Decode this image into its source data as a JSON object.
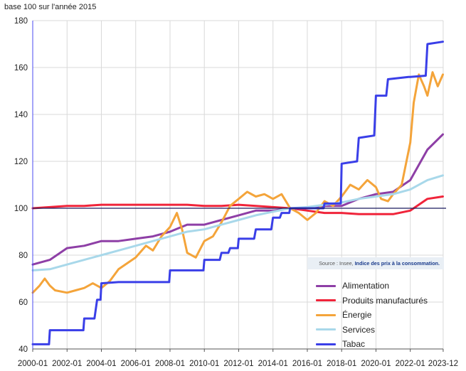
{
  "chart_data": {
    "type": "line",
    "title": "",
    "ylabel": "base 100 sur l'année 2015",
    "xlabel": "",
    "ylim": [
      40,
      180
    ],
    "yticks": [
      40,
      60,
      80,
      100,
      120,
      140,
      160,
      180
    ],
    "xticks": [
      "2000-01",
      "2002-01",
      "2004-01",
      "2006-01",
      "2008-01",
      "2010-01",
      "2012-01",
      "2014-01",
      "2016-01",
      "2018-01",
      "2020-01",
      "2022-01",
      "2023-12"
    ],
    "grid": true,
    "reference_line": 100,
    "legend_position": "bottom-right",
    "source_prefix": "Source : Insee,",
    "source_link": "Indice des prix à la consommation.",
    "series": [
      {
        "name": "Alimentation",
        "color": "#8e3fa6",
        "points": [
          [
            2000.0,
            76
          ],
          [
            2001.0,
            78
          ],
          [
            2002.0,
            83
          ],
          [
            2003.0,
            84
          ],
          [
            2004.0,
            86
          ],
          [
            2005.0,
            86
          ],
          [
            2006.0,
            87
          ],
          [
            2007.0,
            88
          ],
          [
            2008.0,
            90
          ],
          [
            2009.0,
            93
          ],
          [
            2010.0,
            93
          ],
          [
            2011.0,
            95
          ],
          [
            2012.0,
            97
          ],
          [
            2013.0,
            99
          ],
          [
            2014.0,
            99
          ],
          [
            2015.0,
            100
          ],
          [
            2016.0,
            100
          ],
          [
            2017.0,
            101
          ],
          [
            2018.0,
            101
          ],
          [
            2019.0,
            104
          ],
          [
            2020.0,
            106
          ],
          [
            2021.0,
            107
          ],
          [
            2022.0,
            112
          ],
          [
            2023.0,
            125
          ],
          [
            2023.9,
            131.5
          ]
        ]
      },
      {
        "name": "Produits manufacturés",
        "color": "#f0243a",
        "points": [
          [
            2000.0,
            100
          ],
          [
            2001.0,
            100.5
          ],
          [
            2002.0,
            101
          ],
          [
            2003.0,
            101
          ],
          [
            2004.0,
            101.5
          ],
          [
            2005.0,
            101.5
          ],
          [
            2006.0,
            101.5
          ],
          [
            2007.0,
            101.5
          ],
          [
            2008.0,
            101.5
          ],
          [
            2009.0,
            101.5
          ],
          [
            2010.0,
            101
          ],
          [
            2011.0,
            101
          ],
          [
            2012.0,
            101.5
          ],
          [
            2013.0,
            101
          ],
          [
            2014.0,
            100.5
          ],
          [
            2015.0,
            100
          ],
          [
            2016.0,
            99
          ],
          [
            2017.0,
            98
          ],
          [
            2018.0,
            98
          ],
          [
            2019.0,
            97.5
          ],
          [
            2020.0,
            97.5
          ],
          [
            2021.0,
            97.5
          ],
          [
            2022.0,
            99
          ],
          [
            2023.0,
            104
          ],
          [
            2023.9,
            105
          ]
        ]
      },
      {
        "name": "Énergie",
        "color": "#f4a43a",
        "points": [
          [
            2000.0,
            64
          ],
          [
            2000.4,
            67
          ],
          [
            2000.7,
            70
          ],
          [
            2001.0,
            67
          ],
          [
            2001.3,
            65
          ],
          [
            2002.0,
            64
          ],
          [
            2002.5,
            65
          ],
          [
            2003.0,
            66
          ],
          [
            2003.5,
            68
          ],
          [
            2004.0,
            66
          ],
          [
            2004.5,
            69
          ],
          [
            2005.0,
            74
          ],
          [
            2006.0,
            79
          ],
          [
            2006.6,
            84
          ],
          [
            2007.0,
            82
          ],
          [
            2007.5,
            88
          ],
          [
            2008.0,
            92
          ],
          [
            2008.4,
            98
          ],
          [
            2008.7,
            91
          ],
          [
            2009.0,
            81
          ],
          [
            2009.5,
            79
          ],
          [
            2010.0,
            86
          ],
          [
            2010.5,
            88
          ],
          [
            2011.0,
            94
          ],
          [
            2011.5,
            101
          ],
          [
            2012.0,
            104
          ],
          [
            2012.5,
            107
          ],
          [
            2013.0,
            105
          ],
          [
            2013.5,
            106
          ],
          [
            2014.0,
            104
          ],
          [
            2014.5,
            106
          ],
          [
            2015.0,
            100
          ],
          [
            2015.5,
            98
          ],
          [
            2016.0,
            95
          ],
          [
            2016.5,
            98
          ],
          [
            2017.0,
            103
          ],
          [
            2017.5,
            101
          ],
          [
            2018.0,
            105
          ],
          [
            2018.5,
            110
          ],
          [
            2019.0,
            108
          ],
          [
            2019.5,
            112
          ],
          [
            2020.0,
            109
          ],
          [
            2020.3,
            104
          ],
          [
            2020.7,
            103
          ],
          [
            2021.0,
            106
          ],
          [
            2021.5,
            110
          ],
          [
            2022.0,
            128
          ],
          [
            2022.2,
            145
          ],
          [
            2022.5,
            157
          ],
          [
            2022.8,
            152
          ],
          [
            2023.0,
            148
          ],
          [
            2023.3,
            158
          ],
          [
            2023.6,
            152
          ],
          [
            2023.9,
            157
          ]
        ]
      },
      {
        "name": "Services",
        "color": "#a8d8ea",
        "points": [
          [
            2000.0,
            73.5
          ],
          [
            2001.0,
            74
          ],
          [
            2002.0,
            76
          ],
          [
            2003.0,
            78
          ],
          [
            2004.0,
            80
          ],
          [
            2005.0,
            82
          ],
          [
            2006.0,
            84
          ],
          [
            2007.0,
            86
          ],
          [
            2008.0,
            88
          ],
          [
            2009.0,
            90
          ],
          [
            2010.0,
            91
          ],
          [
            2011.0,
            93
          ],
          [
            2012.0,
            95
          ],
          [
            2013.0,
            97
          ],
          [
            2014.0,
            98.5
          ],
          [
            2015.0,
            100
          ],
          [
            2016.0,
            100.5
          ],
          [
            2017.0,
            101.5
          ],
          [
            2018.0,
            102.5
          ],
          [
            2019.0,
            104
          ],
          [
            2020.0,
            105
          ],
          [
            2021.0,
            106
          ],
          [
            2022.0,
            108
          ],
          [
            2023.0,
            112
          ],
          [
            2023.9,
            114
          ]
        ]
      },
      {
        "name": "Tabac",
        "color": "#3a3fe8",
        "points": [
          [
            2000.0,
            42
          ],
          [
            2000.95,
            42
          ],
          [
            2001.0,
            48
          ],
          [
            2002.0,
            48
          ],
          [
            2002.95,
            48
          ],
          [
            2003.0,
            53
          ],
          [
            2003.6,
            53
          ],
          [
            2003.75,
            61
          ],
          [
            2003.95,
            61
          ],
          [
            2004.0,
            68
          ],
          [
            2005.0,
            68.5
          ],
          [
            2007.0,
            68.5
          ],
          [
            2007.95,
            68.5
          ],
          [
            2008.0,
            73.5
          ],
          [
            2009.0,
            73.5
          ],
          [
            2009.95,
            73.5
          ],
          [
            2010.0,
            78
          ],
          [
            2010.9,
            78
          ],
          [
            2011.0,
            81
          ],
          [
            2011.4,
            81
          ],
          [
            2011.5,
            83
          ],
          [
            2011.95,
            83
          ],
          [
            2012.0,
            87
          ],
          [
            2012.9,
            87
          ],
          [
            2013.0,
            91
          ],
          [
            2013.9,
            91
          ],
          [
            2014.0,
            96
          ],
          [
            2014.4,
            96
          ],
          [
            2014.5,
            98
          ],
          [
            2014.95,
            98
          ],
          [
            2015.0,
            100
          ],
          [
            2016.0,
            100
          ],
          [
            2016.95,
            100
          ],
          [
            2017.0,
            102
          ],
          [
            2017.95,
            102
          ],
          [
            2018.0,
            119
          ],
          [
            2018.9,
            120
          ],
          [
            2019.0,
            130
          ],
          [
            2019.9,
            131
          ],
          [
            2020.0,
            148
          ],
          [
            2020.6,
            148
          ],
          [
            2020.7,
            155
          ],
          [
            2021.9,
            156
          ],
          [
            2022.0,
            156
          ],
          [
            2022.9,
            156.5
          ],
          [
            2023.0,
            170
          ],
          [
            2023.9,
            171
          ]
        ]
      }
    ]
  }
}
